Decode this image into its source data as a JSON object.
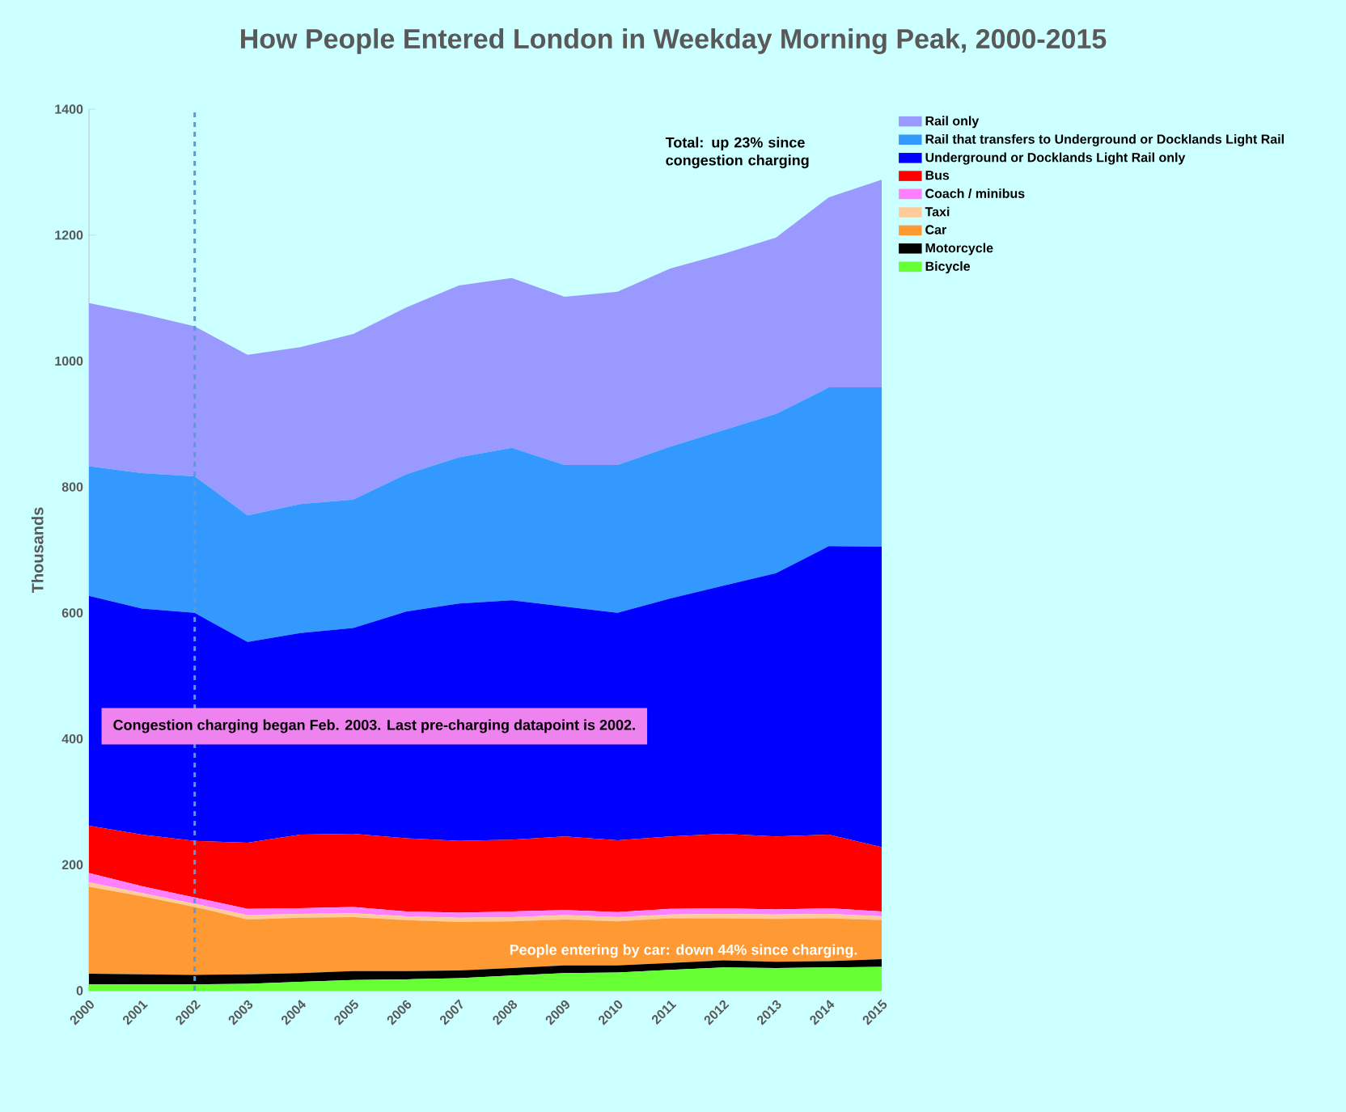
{
  "chart_data": {
    "type": "area",
    "stacked": true,
    "title": "How People Entered London in Weekday Morning Peak, 2000-2015",
    "ylabel": "Thousands",
    "x": [
      2000,
      2001,
      2002,
      2003,
      2004,
      2005,
      2006,
      2007,
      2008,
      2009,
      2010,
      2011,
      2012,
      2013,
      2014,
      2015
    ],
    "xlim": [
      2000,
      2015
    ],
    "ylim": [
      0,
      1400
    ],
    "xticks": [
      2000,
      2001,
      2002,
      2003,
      2004,
      2005,
      2006,
      2007,
      2008,
      2009,
      2010,
      2011,
      2012,
      2013,
      2014,
      2015
    ],
    "yticks": [
      0,
      200,
      400,
      600,
      800,
      1000,
      1200,
      1400
    ],
    "legend": "right",
    "series": [
      {
        "name": "Bicycle",
        "color": "#66ff33",
        "values": [
          10,
          10,
          10,
          11,
          14,
          17,
          18,
          20,
          24,
          28,
          29,
          33,
          37,
          36,
          37,
          38
        ]
      },
      {
        "name": "Motorcycle",
        "color": "#000000",
        "values": [
          17,
          16,
          15,
          15,
          14,
          14,
          13,
          12,
          12,
          12,
          11,
          11,
          11,
          10,
          10,
          12
        ]
      },
      {
        "name": "Car",
        "color": "#ff9933",
        "values": [
          138,
          124,
          108,
          87,
          88,
          86,
          81,
          77,
          74,
          73,
          70,
          71,
          67,
          68,
          68,
          62
        ]
      },
      {
        "name": "Taxi",
        "color": "#ffcc99",
        "values": [
          7,
          5,
          5,
          7,
          6,
          6,
          6,
          7,
          7,
          7,
          7,
          6,
          7,
          7,
          7,
          6
        ]
      },
      {
        "name": "Coach / minibus",
        "color": "#ff80ff",
        "values": [
          15,
          11,
          10,
          10,
          9,
          10,
          8,
          8,
          9,
          8,
          8,
          9,
          9,
          8,
          9,
          8
        ]
      },
      {
        "name": "Bus",
        "color": "#ff0000",
        "values": [
          75,
          82,
          90,
          105,
          117,
          116,
          116,
          114,
          114,
          117,
          114,
          115,
          118,
          116,
          117,
          102
        ]
      },
      {
        "name": "Underground or Docklands Light Rail only",
        "color": "#0000ff",
        "values": [
          365,
          359,
          362,
          319,
          320,
          327,
          360,
          377,
          380,
          365,
          361,
          378,
          394,
          418,
          458,
          477
        ]
      },
      {
        "name": "Rail that transfers to Underground or Docklands Light Rail",
        "color": "#3399ff",
        "values": [
          206,
          215,
          217,
          201,
          205,
          204,
          218,
          232,
          242,
          225,
          235,
          241,
          247,
          253,
          252,
          253
        ]
      },
      {
        "name": "Rail only",
        "color": "#9999ff",
        "values": [
          259,
          253,
          238,
          255,
          249,
          263,
          265,
          273,
          270,
          267,
          275,
          283,
          280,
          280,
          302,
          330
        ]
      }
    ],
    "ref_lines": [
      {
        "axis": "x",
        "value": 2002,
        "color": "#5b9bd5",
        "line_style": "dashed"
      }
    ],
    "annotations": [
      "Total: up 23% since congestion charging",
      "Congestion charging began Feb. 2003. Last pre-charging datapoint is 2002.",
      "People entering by car: down 44% since charging."
    ]
  }
}
